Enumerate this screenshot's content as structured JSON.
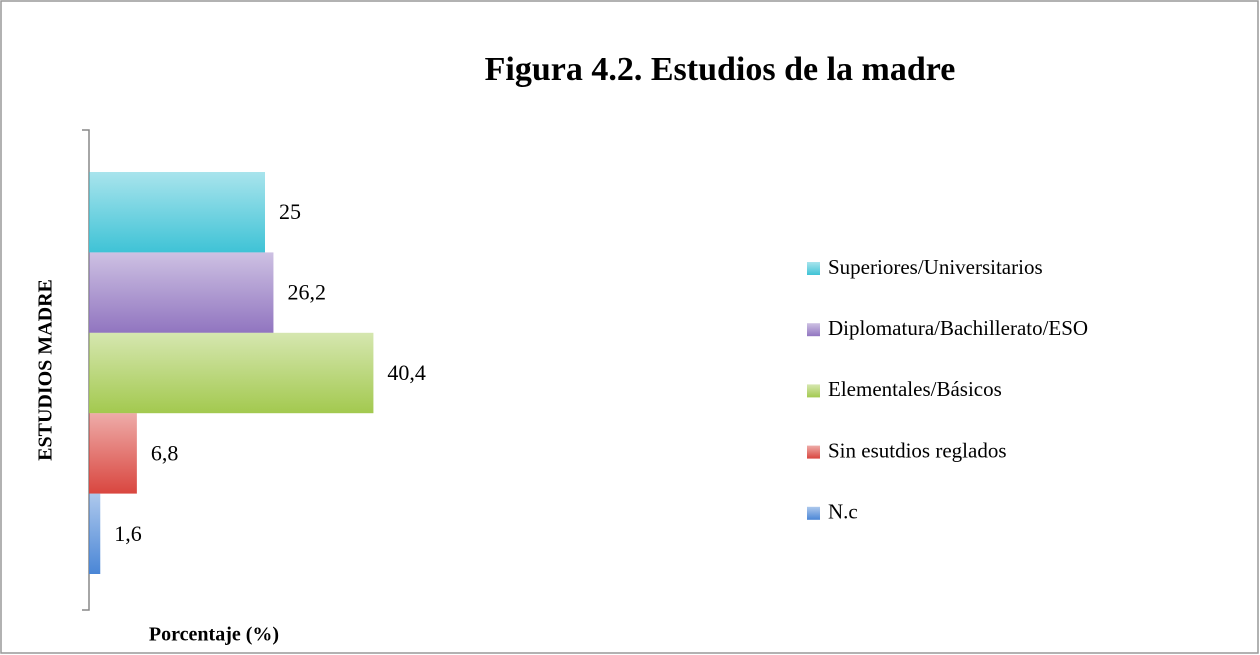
{
  "chart_data": {
    "type": "bar",
    "orientation": "horizontal",
    "title": "Figura 4.2. Estudios de la madre",
    "ylabel": "ESTUDIOS MADRE",
    "xlabel": "Porcentaje (%)",
    "categories": [
      null
    ],
    "xlim": [
      0,
      100
    ],
    "legend": "right",
    "series": [
      {
        "name": "Superiores/Universitarios",
        "color": "#3fc3d6",
        "values": [
          25
        ],
        "value_labels": [
          "25"
        ]
      },
      {
        "name": "Diplomatura/Bachillerato/ESO",
        "color": "#9175c0",
        "values": [
          26.2
        ],
        "value_labels": [
          "26,2"
        ]
      },
      {
        "name": "Elementales/Básicos",
        "color": "#a3c94f",
        "values": [
          40.4
        ],
        "value_labels": [
          "40,4"
        ]
      },
      {
        "name": "Sin esutdios reglados",
        "color": "#d9463f",
        "values": [
          6.8
        ],
        "value_labels": [
          "6,8"
        ]
      },
      {
        "name": "N.c",
        "color": "#4a86d6",
        "values": [
          1.6
        ],
        "value_labels": [
          "1,6"
        ]
      }
    ]
  }
}
